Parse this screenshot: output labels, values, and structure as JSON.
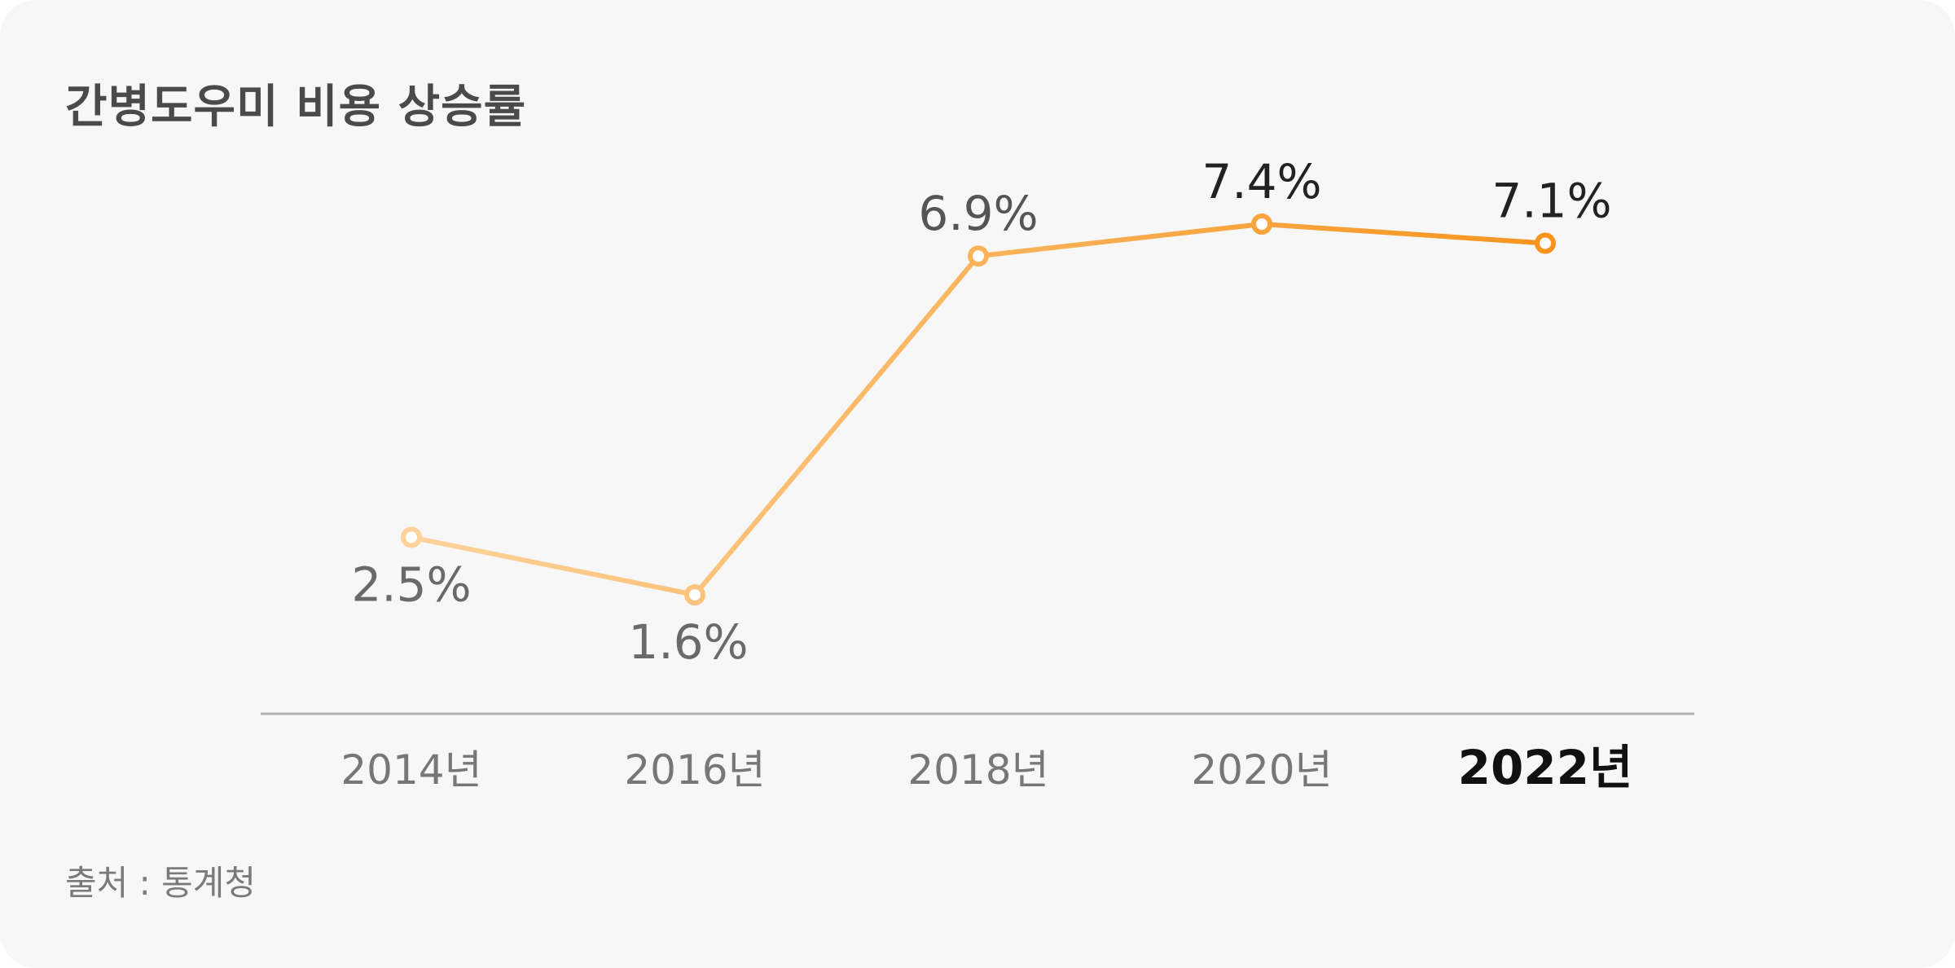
{
  "title": "간병도우미 비용 상승률",
  "source": "출처 : 통계청",
  "chart_data": {
    "type": "line",
    "title": "간병도우미 비용 상승률",
    "categories": [
      "2014년",
      "2016년",
      "2018년",
      "2020년",
      "2022년"
    ],
    "values": [
      2.5,
      1.6,
      6.9,
      7.4,
      7.1
    ],
    "value_labels": [
      "2.5%",
      "1.6%",
      "6.9%",
      "7.4%",
      "7.1%"
    ],
    "unit": "%",
    "highlight_category": "2022년",
    "grid": false,
    "legend": "none",
    "colors": {
      "line_start": "#fdd39b",
      "line_end": "#f7941d",
      "axis": "#b0b0b0",
      "tick_text": "#777777",
      "tick_text_highlight": "#111111",
      "label_dark": "#222222",
      "label_mid": "#555555",
      "label_light": "#6a6a6a"
    }
  }
}
